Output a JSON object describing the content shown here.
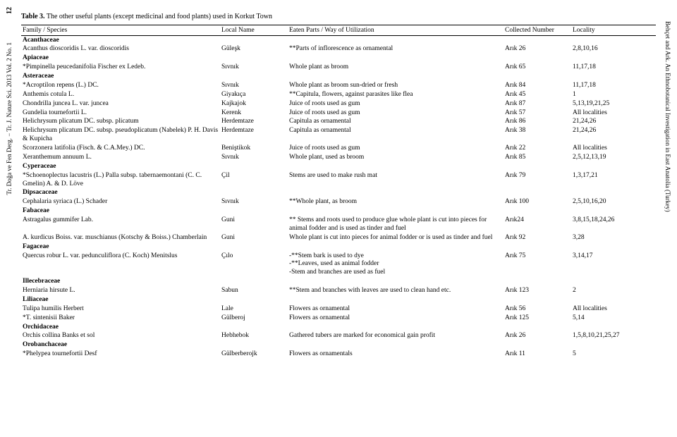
{
  "pageNumber": "12",
  "sideLeft": "Tr. Doğa ve Fen Derg. − Tr. J. Nature Sci.     2013     Vol. 2     No. 1",
  "sideRight": "Behçet and Ark. An Ethnobotanical Investigation in East Anatolia (Turkey)",
  "caption": {
    "label": "Table 3.",
    "text": "The other useful plants (except medicinal and food plants) used in Korkut Town"
  },
  "headers": {
    "species": "Family / Species",
    "local": "Local Name",
    "eaten": "Eaten Parts / Way of Utilization",
    "collected": "Collected Number",
    "locality": "Locality"
  },
  "rows": [
    {
      "family": "Acanthaceae"
    },
    {
      "species": "Acanthus dioscoridis L. var. dioscoridis",
      "local": "Güleşk",
      "eaten": "**Parts of inflorescence as ornamental",
      "coll": "Arık 26",
      "loc": "2,8,10,16"
    },
    {
      "family": "Apiaceae"
    },
    {
      "species": "*Pimpinella peucedanifolia Fischer ex Ledeb.",
      "local": "Sıvnık",
      "eaten": "Whole plant as broom",
      "coll": "Arık 65",
      "loc": "11,17,18"
    },
    {
      "family": "Asteraceae"
    },
    {
      "species": "*Acroptilon repens (L.) DC.",
      "local": "Sıvnık",
      "eaten": "Whole plant as broom sun-dried or fresh",
      "coll": "Arık 84",
      "loc": "11,17,18"
    },
    {
      "species": "Anthemis cotula L.",
      "local": "Giyakıça",
      "eaten": "**Capitula, flowers, against parasites like flea",
      "coll": "Arık 45",
      "loc": "1"
    },
    {
      "species": "Chondrilla juncea L. var. juncea",
      "local": "Kajkajok",
      "eaten": "Juice of roots used as gum",
      "coll": "Arık 87",
      "loc": "5,13,19,21,25"
    },
    {
      "species": "Gundelia tournefortii L.",
      "local": "Kerenk",
      "eaten": "Juice of roots used as gum",
      "coll": "Arık 57",
      "loc": "All localities"
    },
    {
      "species": "Helichrysum plicatum DC. subsp. plicatum",
      "local": "Herdemtaze",
      "eaten": "Capitula as ornamental",
      "coll": "Arık 86",
      "loc": "21,24,26"
    },
    {
      "species": "Helichrysum plicatum DC. subsp. pseudoplicatum (Nabelek) P. H. Davis & Kupicha",
      "local": "Herdemtaze",
      "eaten": "Capitula as ornamental",
      "coll": "Arık 38",
      "loc": "21,24,26"
    },
    {
      "species": "Scorzonera latifolia (Fisch. & C.A.Mey.) DC.",
      "local": "Beniştikok",
      "eaten": "Juice of roots used as gum",
      "coll": "Arık 22",
      "loc": "All localities"
    },
    {
      "species": "Xeranthemum annuum L.",
      "local": "Sıvnık",
      "eaten": "Whole plant, used as broom",
      "coll": "Arık 85",
      "loc": "2,5,12,13,19"
    },
    {
      "family": "Cyperaceae"
    },
    {
      "species": "*Schoenoplectus lacustris (L.) Palla subsp. tabernaemontani (C. C. Gmelin) A. & D. Löve",
      "local": "Çil",
      "eaten": "Stems are used to make rush mat",
      "coll": "Arık 79",
      "loc": "1,3,17,21"
    },
    {
      "family": "Dipsacaceae"
    },
    {
      "species": "Cephalaria syriaca (L.) Schader",
      "local": "Sıvnık",
      "eaten": "**Whole plant, as broom",
      "coll": "Arık 100",
      "loc": "2,5,10,16,20"
    },
    {
      "family": "Fabaceae"
    },
    {
      "species": "Astragalus gummifer Lab.",
      "local": "Guni",
      "eaten": "** Stems and roots used to produce glue whole plant is cut into pieces for animal fodder and is used as tinder and fuel",
      "coll": "Arık24",
      "loc": "3,8,15,18,24,26"
    },
    {
      "species": "A. kurdicus Boiss. var. muschianus (Kotschy & Boiss.) Chamberlain",
      "local": "Guni",
      "eaten": "Whole plant is cut into pieces for animal fodder or is used as tinder and fuel",
      "coll": "Arık 92",
      "loc": "3,28"
    },
    {
      "family": "Fagaceae"
    },
    {
      "species": "Quercus robur L. var. pedunculiflora (C. Koch) Menitslus",
      "local": "Çılo",
      "eaten": "-**Stem bark is used to dye\n-**Leaves, used as animal fodder\n-Stem and branches are used as fuel",
      "coll": "Arık 75",
      "loc": "3,14,17"
    },
    {
      "family": "Illecebraceae"
    },
    {
      "species": "Herniaria hirsute L.",
      "local": "Sabun",
      "eaten": "**Stem and branches with leaves are used to clean hand etc.",
      "coll": "Arık 123",
      "loc": "2"
    },
    {
      "family": "Liliaceae"
    },
    {
      "species": "Tulipa humilis Herbert",
      "local": "Lale",
      "eaten": "Flowers as ornamental",
      "coll": "Arık 56",
      "loc": "All localities"
    },
    {
      "species": "*T. sintenisii Baker",
      "local": "Gülberoj",
      "eaten": "Flowers as ornamental",
      "coll": "Arık 125",
      "loc": "5,14"
    },
    {
      "family": "Orchidaceae"
    },
    {
      "species": "Orchis collina Banks et sol",
      "local": "Hebhebok",
      "eaten": "Gathered tubers are marked for economical gain profit",
      "coll": "Arık 26",
      "loc": "1,5,8,10,21,25,27"
    },
    {
      "family": "Orobanchaceae"
    },
    {
      "species": "*Phelypea tournefortii Desf",
      "local": "Gülberberojk",
      "eaten": "Flowers as ornamentals",
      "coll": "Arık 11",
      "loc": "5"
    }
  ]
}
